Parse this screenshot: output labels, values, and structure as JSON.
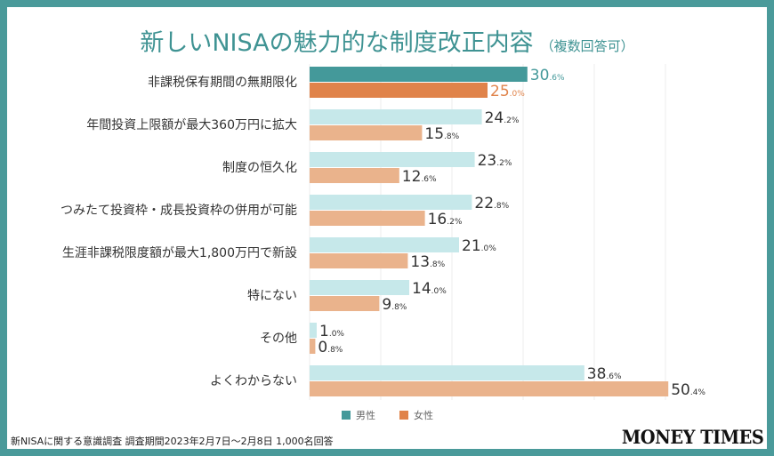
{
  "title": "新しいNISAの魅力的な制度改正内容",
  "subtitle": "（複数回答可）",
  "footer_note": "新NISAに関する意識調査 調査期間2023年2月7日〜2月8日 1,000名回答",
  "brand": "MONEY TIMES",
  "colors": {
    "frame": "#4a9a9a",
    "male_highlight": "#44999a",
    "female_highlight": "#e0834a",
    "male": "#c6e8ea",
    "female": "#eab38c",
    "male_highlight_label": "#44999a",
    "female_highlight_label": "#e0834a",
    "label": "#333333",
    "grid": "#eeeeee"
  },
  "chart_data": {
    "type": "bar",
    "orientation": "horizontal",
    "title": "新しいNISAの魅力的な制度改正内容（複数回答可）",
    "xlabel": "",
    "ylabel": "",
    "xlim": [
      0,
      50
    ],
    "grid": true,
    "grid_step": 10,
    "unit": "%",
    "legend_position": "bottom",
    "categories": [
      "非課税保有期間の無期限化",
      "年間投資上限額が最大360万円に拡大",
      "制度の恒久化",
      "つみたて投資枠・成長投資枠の併用が可能",
      "生涯非課税限度額が最大1,800万円で新設",
      "特にない",
      "その他",
      "よくわからない"
    ],
    "highlight_index": 0,
    "series": [
      {
        "name": "男性",
        "values": [
          30.6,
          24.2,
          23.2,
          22.8,
          21.0,
          14.0,
          1.0,
          38.6
        ]
      },
      {
        "name": "女性",
        "values": [
          25.0,
          15.8,
          12.6,
          16.2,
          13.8,
          9.8,
          0.8,
          50.4
        ]
      }
    ]
  }
}
